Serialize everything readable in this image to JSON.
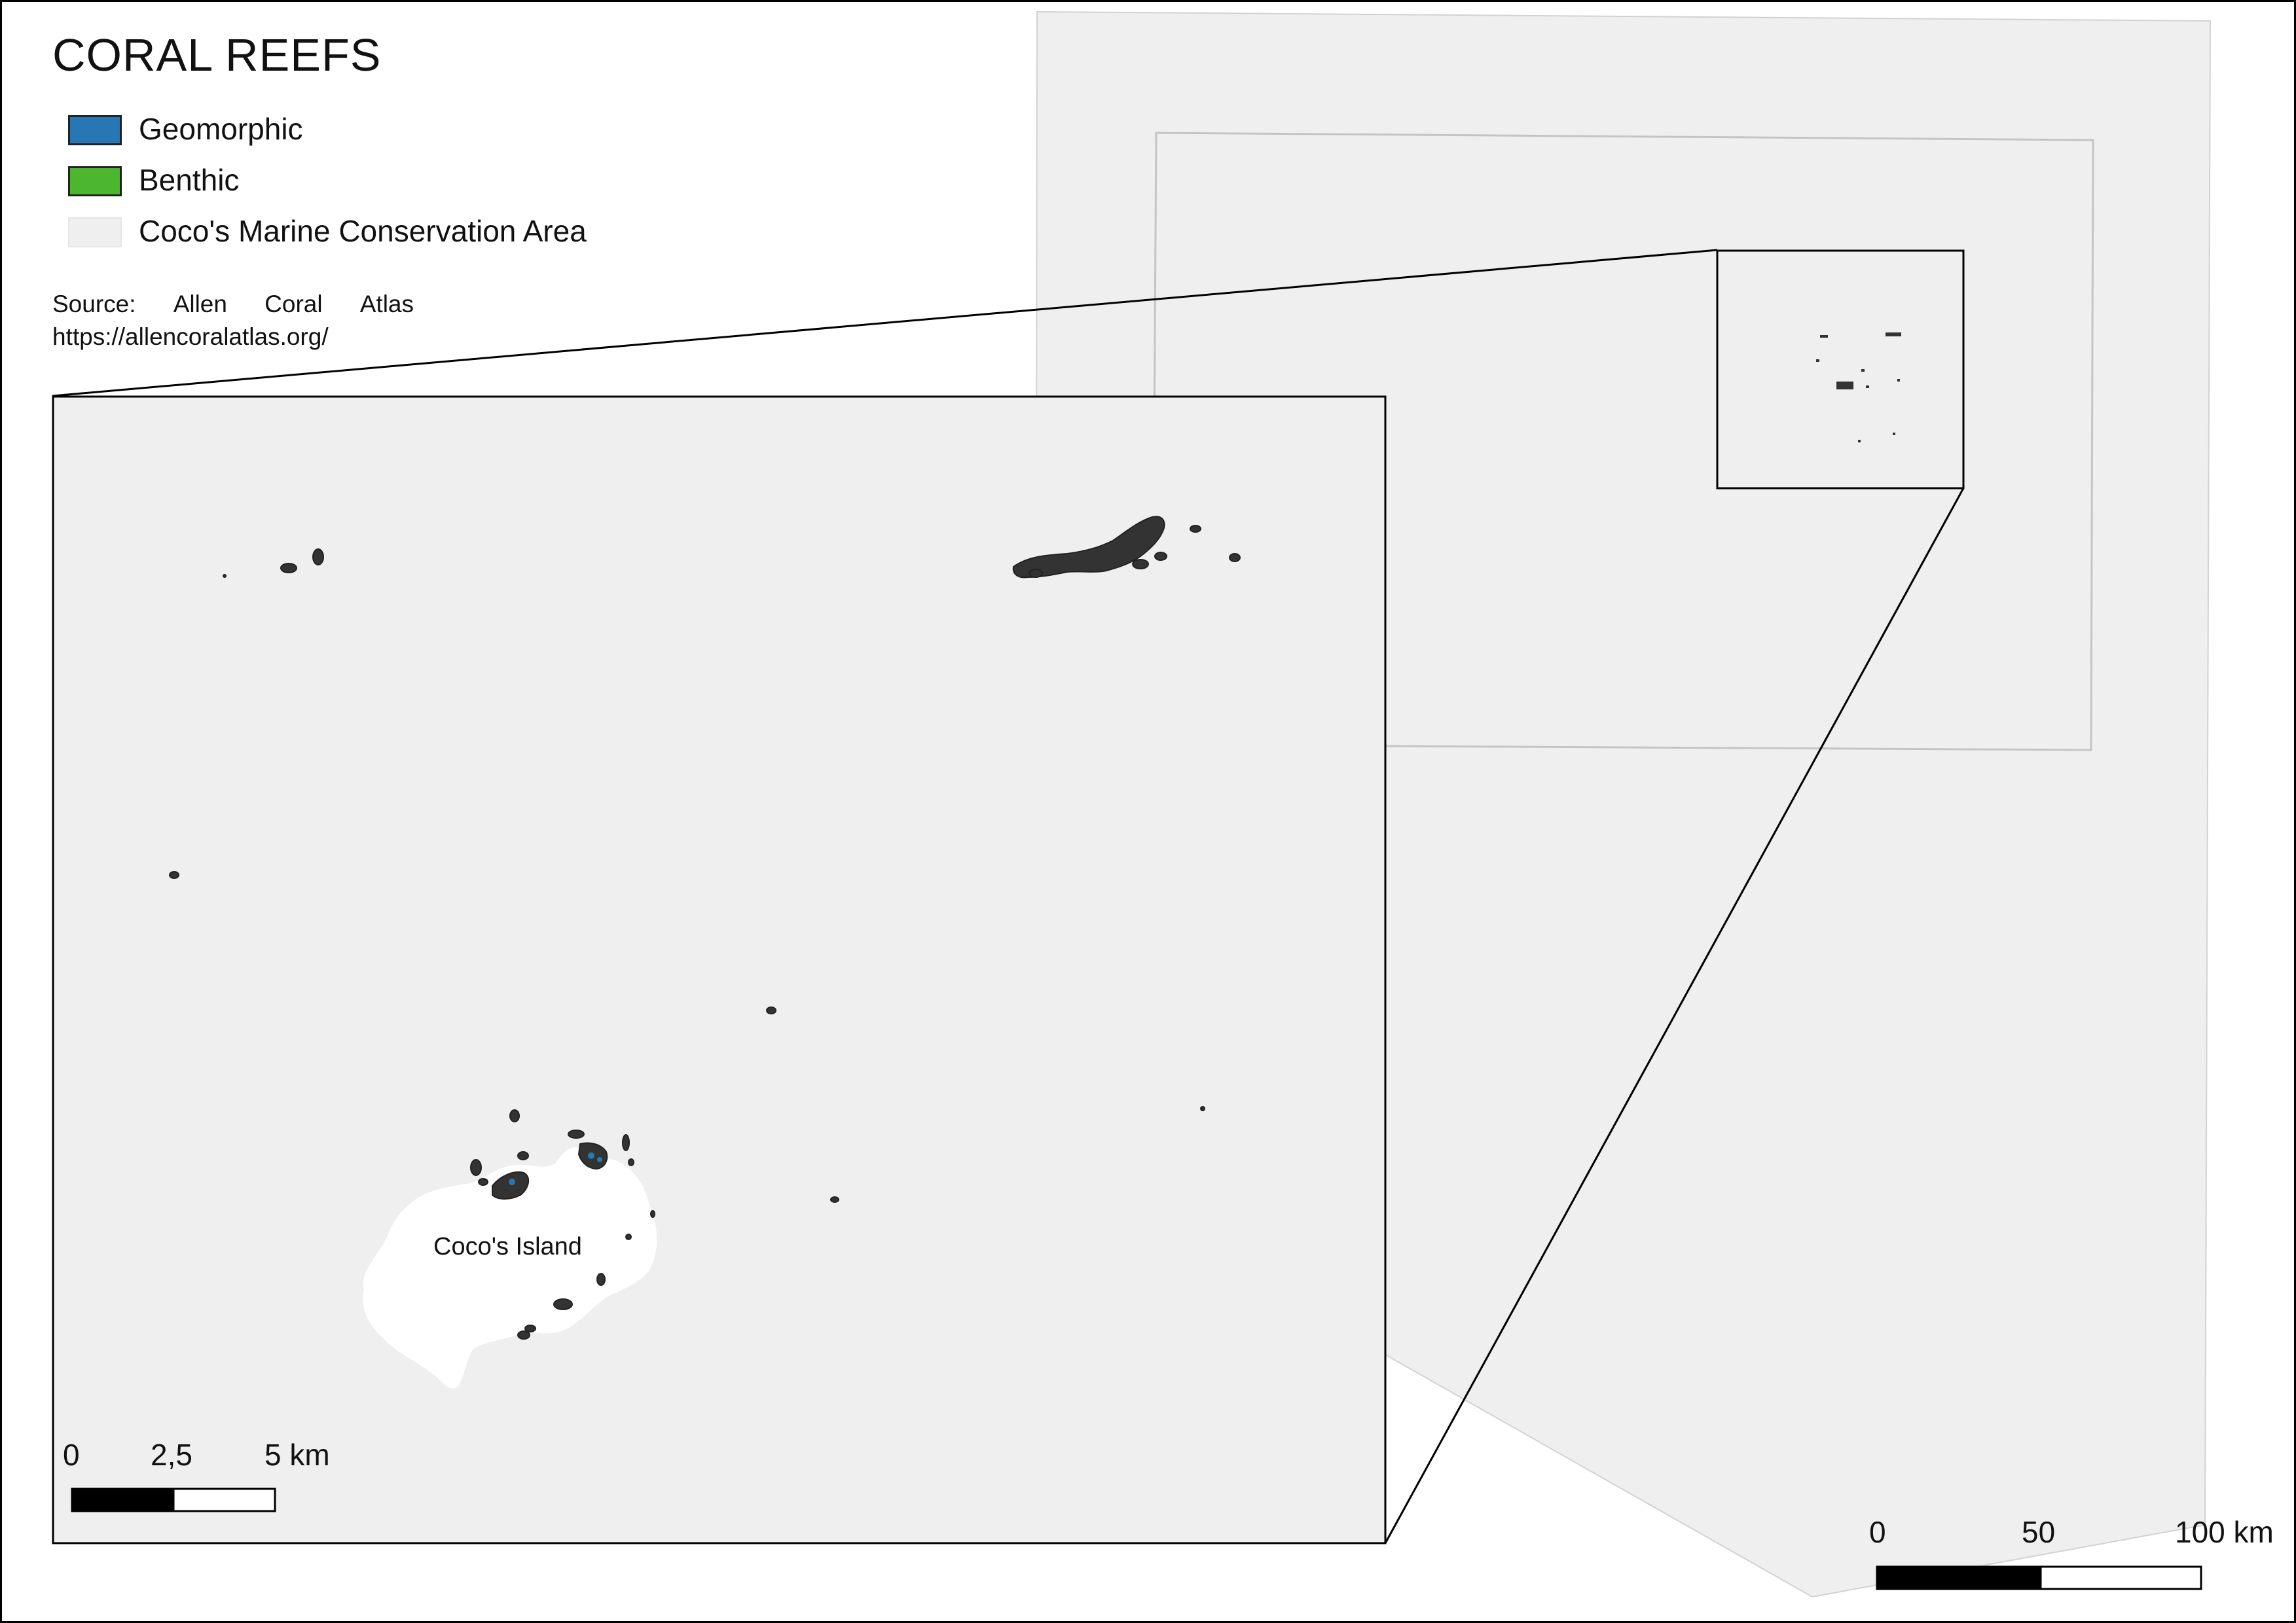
{
  "title": "CORAL REEFS",
  "legend": {
    "items": [
      {
        "label": "Geomorphic",
        "color": "#2777b4"
      },
      {
        "label": "Benthic",
        "color": "#4cb62e"
      },
      {
        "label": "Coco's Marine Conservation Area",
        "color": "#efefef"
      }
    ]
  },
  "source": {
    "words": [
      "Source:",
      "Allen",
      "Coral",
      "Atlas"
    ],
    "url": "https://allencoralatlas.org/"
  },
  "inset_map": {
    "island_label": "Coco's Island",
    "scale_bar": {
      "labels": [
        "0",
        "2,5",
        "5 km"
      ]
    }
  },
  "overview_map": {
    "scale_bar": {
      "labels": [
        "0",
        "50",
        "100 km"
      ]
    }
  },
  "colors": {
    "sea_area": "#efefef",
    "reef": "#333333",
    "island": "#ffffff",
    "frame": "#000000"
  }
}
